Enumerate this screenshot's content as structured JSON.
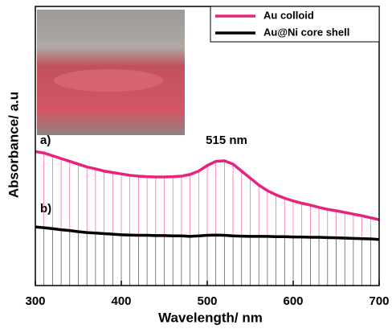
{
  "chart_data": {
    "type": "line",
    "x_label": "Wavelength/ nm",
    "y_label": "Absorbance/ a.u",
    "annotations": [
      "a)",
      "b)",
      "515 nm"
    ],
    "x": [
      300,
      310,
      320,
      330,
      340,
      350,
      360,
      370,
      380,
      390,
      400,
      410,
      420,
      430,
      440,
      450,
      460,
      470,
      480,
      490,
      500,
      510,
      520,
      530,
      540,
      550,
      560,
      570,
      580,
      590,
      600,
      610,
      620,
      630,
      640,
      650,
      660,
      670,
      680,
      690,
      700
    ],
    "series": [
      {
        "name": "Au colloid",
        "color": "#e8237f",
        "values": [
          0.48,
          0.475,
          0.465,
          0.455,
          0.445,
          0.435,
          0.425,
          0.418,
          0.41,
          0.405,
          0.4,
          0.395,
          0.392,
          0.39,
          0.389,
          0.389,
          0.39,
          0.392,
          0.398,
          0.41,
          0.43,
          0.445,
          0.447,
          0.435,
          0.41,
          0.385,
          0.36,
          0.34,
          0.325,
          0.313,
          0.303,
          0.295,
          0.288,
          0.28,
          0.273,
          0.268,
          0.262,
          0.256,
          0.25,
          0.243,
          0.236
        ]
      },
      {
        "name": "Au@Ni core shell",
        "color": "#000000",
        "values": [
          0.21,
          0.207,
          0.204,
          0.2,
          0.197,
          0.193,
          0.19,
          0.188,
          0.186,
          0.184,
          0.182,
          0.181,
          0.18,
          0.18,
          0.179,
          0.179,
          0.178,
          0.178,
          0.176,
          0.178,
          0.18,
          0.181,
          0.18,
          0.178,
          0.177,
          0.176,
          0.176,
          0.176,
          0.175,
          0.175,
          0.174,
          0.174,
          0.173,
          0.173,
          0.172,
          0.171,
          0.17,
          0.169,
          0.168,
          0.167,
          0.165
        ]
      }
    ],
    "xlim": [
      300,
      700
    ],
    "ylim": [
      0,
      1
    ],
    "xticks": [
      300,
      400,
      500,
      600,
      700
    ]
  }
}
